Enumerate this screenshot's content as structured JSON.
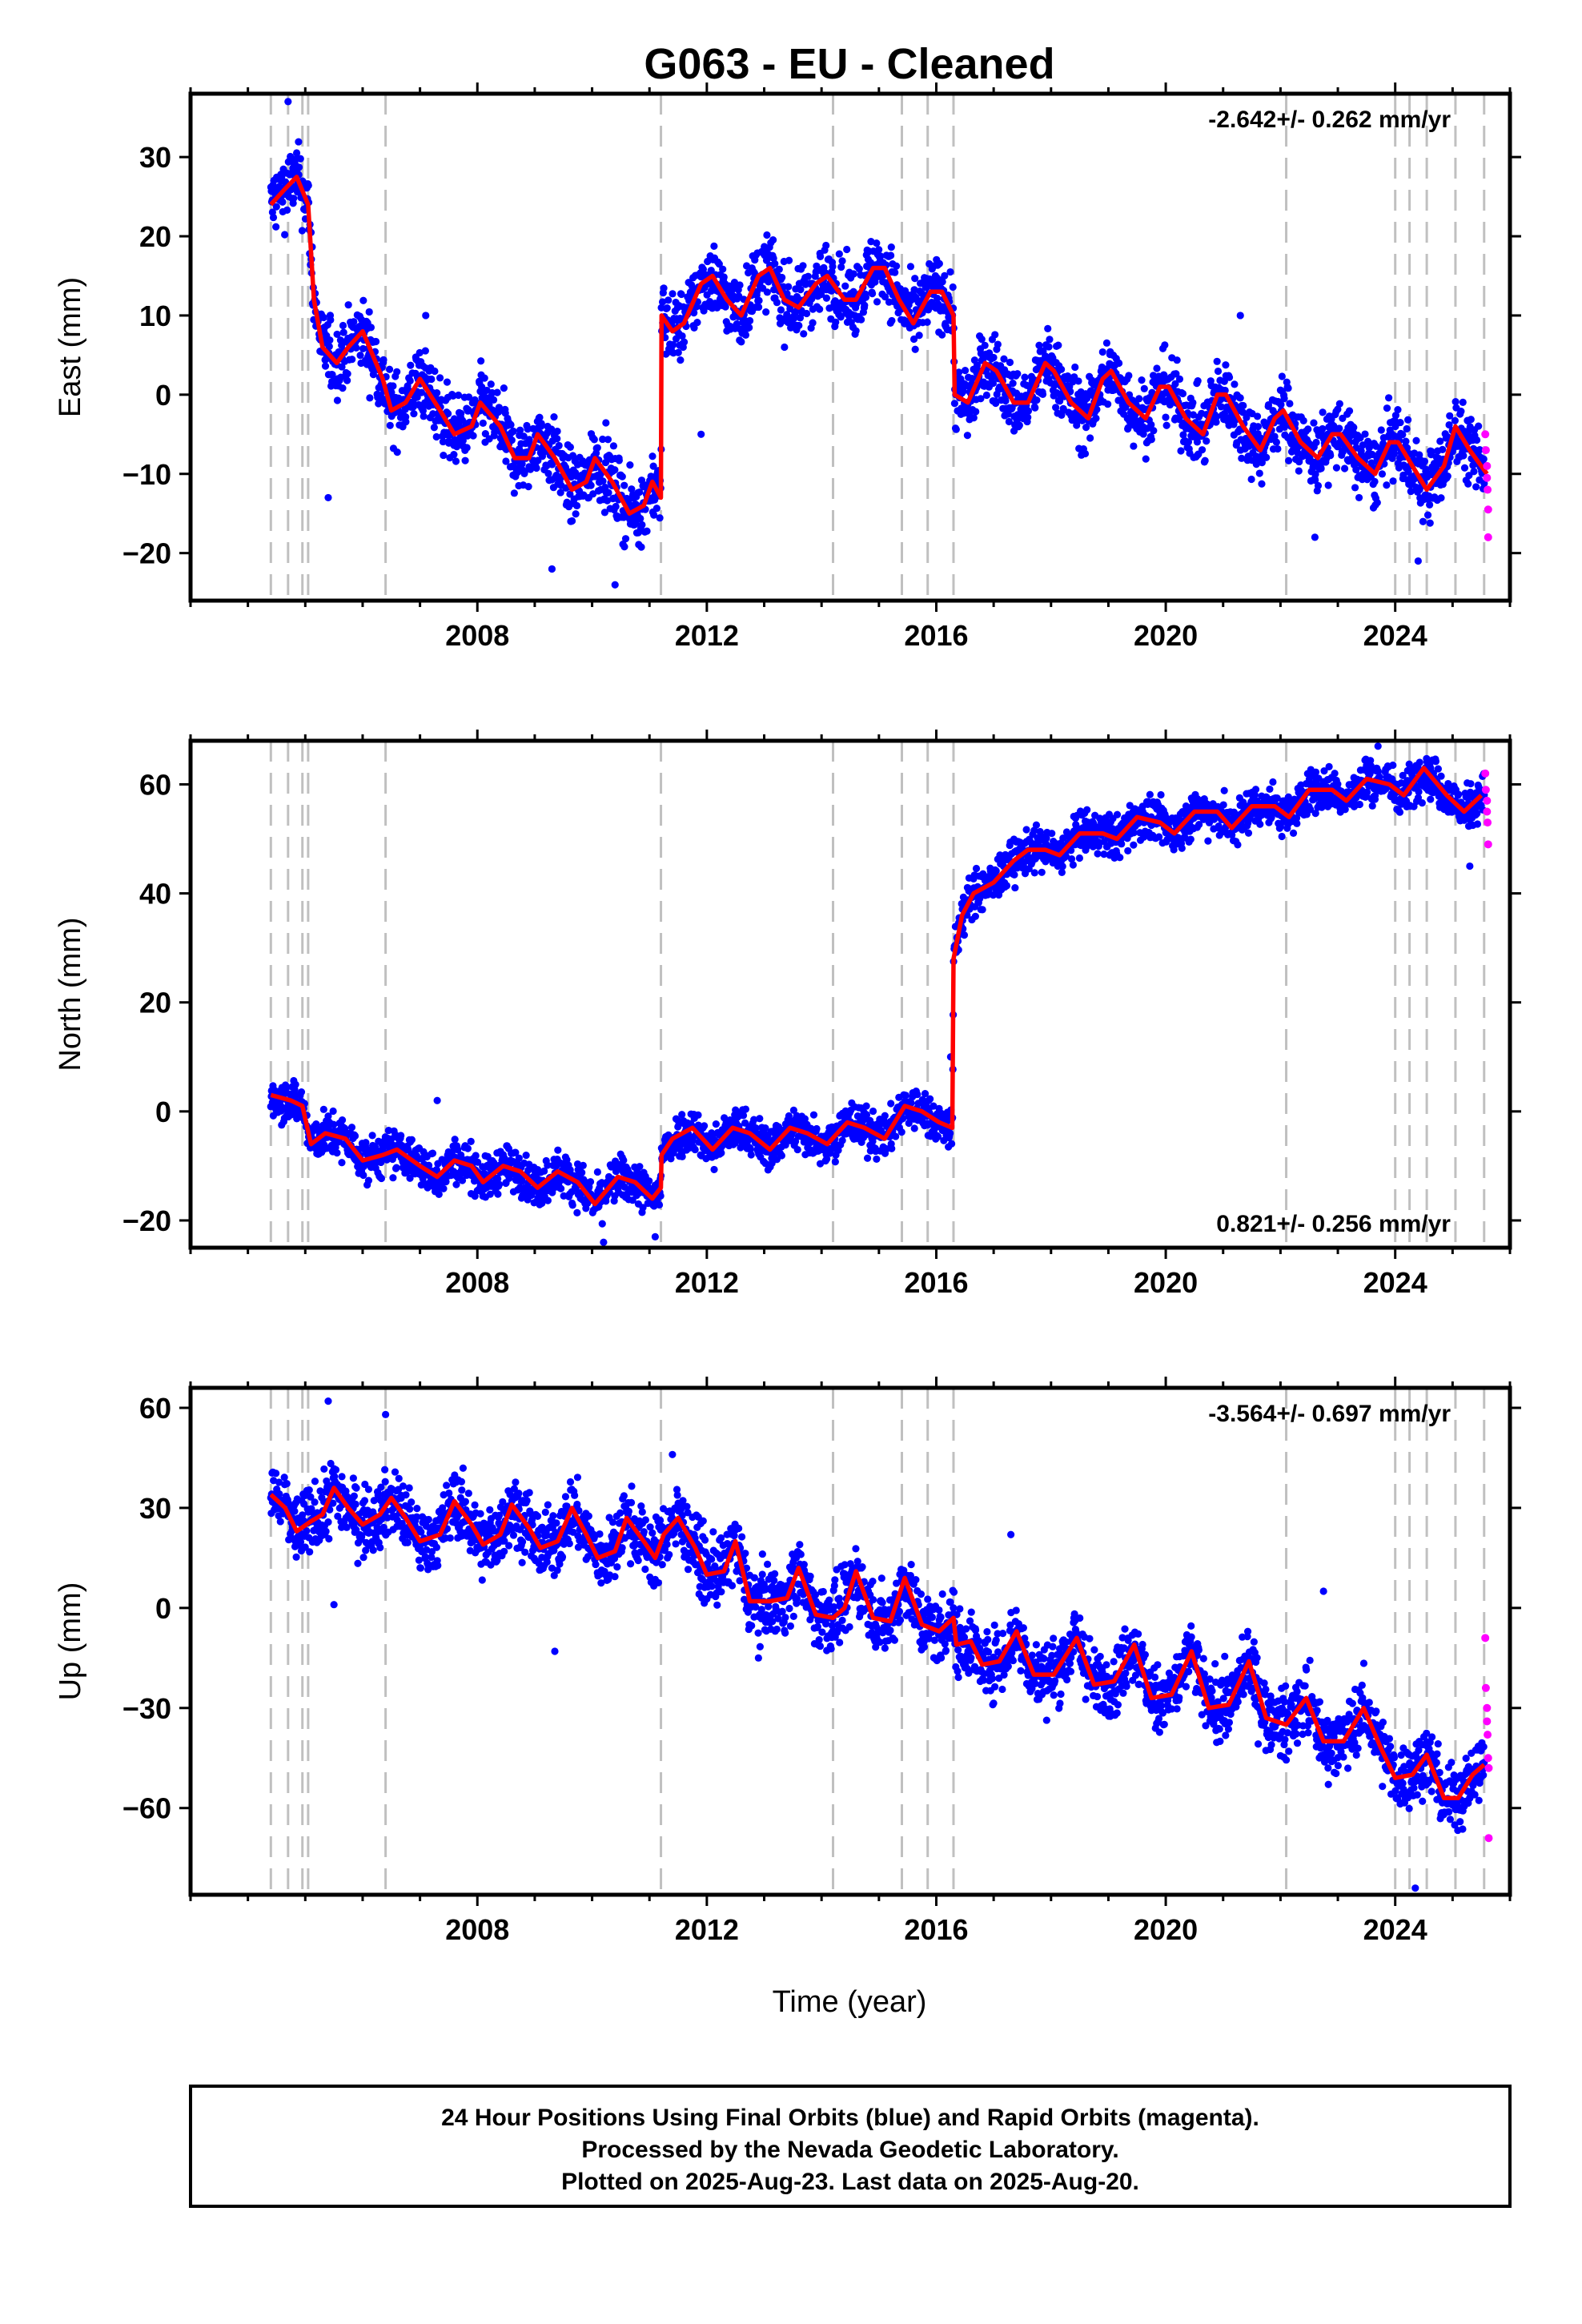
{
  "title": "G063  - EU - Cleaned",
  "xlabel": "Time (year)",
  "footer": {
    "line1": "24 Hour Positions Using Final Orbits (blue) and Rapid Orbits (magenta).",
    "line2": "Processed by the Nevada Geodetic Laboratory.",
    "line3": "Plotted on 2025-Aug-23. Last data on 2025-Aug-20."
  },
  "colors": {
    "final_orbits": "#0000ff",
    "rapid_orbits": "#ff00ff",
    "model": "#ff0000",
    "steps": "#c0c0c0",
    "frame": "#000000"
  },
  "chart_data": [
    {
      "type": "scatter",
      "panel": "east",
      "ylabel": "East (mm)",
      "rate": "-2.642+/- 0.262 mm/yr",
      "rate_position": "top-right",
      "xlim": [
        2003.0,
        2026.0
      ],
      "ylim": [
        -26,
        38
      ],
      "x_ticks": [
        2008,
        2012,
        2016,
        2020,
        2024
      ],
      "y_ticks": [
        -20,
        -10,
        0,
        10,
        20,
        30
      ],
      "step_epochs": [
        2004.4,
        2004.7,
        2004.95,
        2005.05,
        2006.4,
        2011.2,
        2014.2,
        2015.4,
        2015.85,
        2016.3,
        2022.1,
        2024.0,
        2024.25,
        2024.55,
        2025.05,
        2025.55
      ],
      "model_knots": [
        [
          2004.4,
          24
        ],
        [
          2004.65,
          26
        ],
        [
          2004.85,
          27.5
        ],
        [
          2005.05,
          24
        ],
        [
          2005.15,
          12
        ],
        [
          2005.3,
          6
        ],
        [
          2005.55,
          4
        ],
        [
          2005.75,
          6
        ],
        [
          2006.0,
          8
        ],
        [
          2006.35,
          2
        ],
        [
          2006.5,
          -2
        ],
        [
          2006.75,
          -1
        ],
        [
          2007.0,
          2
        ],
        [
          2007.35,
          -2
        ],
        [
          2007.6,
          -5
        ],
        [
          2007.9,
          -4
        ],
        [
          2008.05,
          -1
        ],
        [
          2008.4,
          -4
        ],
        [
          2008.65,
          -8
        ],
        [
          2008.9,
          -8
        ],
        [
          2009.05,
          -5
        ],
        [
          2009.35,
          -8
        ],
        [
          2009.65,
          -12
        ],
        [
          2009.9,
          -11
        ],
        [
          2010.05,
          -8
        ],
        [
          2010.35,
          -11
        ],
        [
          2010.65,
          -15
        ],
        [
          2010.9,
          -14
        ],
        [
          2011.05,
          -11
        ],
        [
          2011.2,
          -13
        ],
        [
          2011.21,
          10
        ],
        [
          2011.4,
          8
        ],
        [
          2011.6,
          9
        ],
        [
          2011.9,
          14
        ],
        [
          2012.1,
          15
        ],
        [
          2012.35,
          12
        ],
        [
          2012.6,
          10
        ],
        [
          2012.9,
          15
        ],
        [
          2013.1,
          16
        ],
        [
          2013.35,
          12
        ],
        [
          2013.6,
          11
        ],
        [
          2013.9,
          14
        ],
        [
          2014.1,
          15
        ],
        [
          2014.2,
          14
        ],
        [
          2014.4,
          12
        ],
        [
          2014.6,
          12
        ],
        [
          2014.9,
          16
        ],
        [
          2015.1,
          16
        ],
        [
          2015.35,
          12
        ],
        [
          2015.6,
          9
        ],
        [
          2015.9,
          13
        ],
        [
          2016.1,
          13
        ],
        [
          2016.3,
          10
        ],
        [
          2016.32,
          0
        ],
        [
          2016.55,
          -1
        ],
        [
          2016.85,
          4
        ],
        [
          2017.05,
          3
        ],
        [
          2017.35,
          -1
        ],
        [
          2017.6,
          -1
        ],
        [
          2017.9,
          4
        ],
        [
          2018.05,
          3
        ],
        [
          2018.35,
          -1
        ],
        [
          2018.65,
          -3
        ],
        [
          2018.9,
          2
        ],
        [
          2019.05,
          3
        ],
        [
          2019.35,
          -1
        ],
        [
          2019.65,
          -3
        ],
        [
          2019.9,
          1
        ],
        [
          2020.05,
          1
        ],
        [
          2020.35,
          -3
        ],
        [
          2020.65,
          -5
        ],
        [
          2020.9,
          0
        ],
        [
          2021.05,
          0
        ],
        [
          2021.35,
          -4
        ],
        [
          2021.65,
          -7
        ],
        [
          2021.9,
          -3
        ],
        [
          2022.05,
          -2
        ],
        [
          2022.35,
          -6
        ],
        [
          2022.65,
          -8
        ],
        [
          2022.9,
          -5
        ],
        [
          2023.05,
          -5
        ],
        [
          2023.35,
          -8
        ],
        [
          2023.65,
          -10
        ],
        [
          2023.9,
          -6
        ],
        [
          2024.05,
          -6
        ],
        [
          2024.3,
          -9
        ],
        [
          2024.55,
          -12
        ],
        [
          2024.85,
          -9
        ],
        [
          2025.05,
          -4
        ],
        [
          2025.3,
          -7
        ],
        [
          2025.6,
          -10
        ]
      ],
      "noise_mm": 2.2,
      "outliers": [
        [
          2004.7,
          37
        ],
        [
          2011.9,
          -5
        ],
        [
          2009.3,
          -22
        ],
        [
          2010.4,
          -24
        ],
        [
          2024.4,
          -21
        ],
        [
          2021.3,
          10
        ],
        [
          2007.1,
          10
        ],
        [
          2022.6,
          -18
        ],
        [
          2005.4,
          -13
        ]
      ],
      "rapid_points": [
        [
          2025.57,
          -5
        ],
        [
          2025.58,
          -7
        ],
        [
          2025.6,
          -9
        ],
        [
          2025.6,
          -10.5
        ],
        [
          2025.61,
          -12
        ],
        [
          2025.62,
          -14.5
        ],
        [
          2025.62,
          -18
        ]
      ]
    },
    {
      "type": "scatter",
      "panel": "north",
      "ylabel": "North (mm)",
      "rate": "0.821+/- 0.256 mm/yr",
      "rate_position": "bottom-right",
      "xlim": [
        2003.0,
        2026.0
      ],
      "ylim": [
        -25,
        68
      ],
      "x_ticks": [
        2008,
        2012,
        2016,
        2020,
        2024
      ],
      "y_ticks": [
        -20,
        0,
        20,
        40,
        60
      ],
      "step_epochs": [
        2004.4,
        2004.7,
        2004.95,
        2005.05,
        2006.4,
        2011.2,
        2014.2,
        2015.4,
        2015.85,
        2016.3,
        2022.1,
        2024.0,
        2024.25,
        2024.55,
        2025.05,
        2025.55
      ],
      "model_knots": [
        [
          2004.4,
          3
        ],
        [
          2004.75,
          2
        ],
        [
          2004.95,
          1
        ],
        [
          2005.1,
          -6
        ],
        [
          2005.35,
          -4
        ],
        [
          2005.7,
          -5
        ],
        [
          2006.0,
          -9
        ],
        [
          2006.35,
          -8
        ],
        [
          2006.6,
          -7
        ],
        [
          2007.0,
          -10
        ],
        [
          2007.3,
          -12
        ],
        [
          2007.6,
          -9
        ],
        [
          2007.9,
          -10
        ],
        [
          2008.1,
          -13
        ],
        [
          2008.45,
          -10
        ],
        [
          2008.75,
          -11
        ],
        [
          2009.05,
          -14
        ],
        [
          2009.4,
          -11
        ],
        [
          2009.75,
          -13
        ],
        [
          2010.05,
          -17
        ],
        [
          2010.45,
          -12
        ],
        [
          2010.75,
          -13
        ],
        [
          2011.05,
          -16
        ],
        [
          2011.2,
          -14
        ],
        [
          2011.21,
          -8
        ],
        [
          2011.4,
          -5
        ],
        [
          2011.75,
          -3
        ],
        [
          2012.1,
          -7
        ],
        [
          2012.45,
          -3
        ],
        [
          2012.75,
          -4
        ],
        [
          2013.1,
          -7
        ],
        [
          2013.45,
          -3
        ],
        [
          2013.75,
          -4
        ],
        [
          2014.1,
          -6
        ],
        [
          2014.45,
          -2
        ],
        [
          2014.75,
          -3
        ],
        [
          2015.1,
          -5
        ],
        [
          2015.45,
          1
        ],
        [
          2015.75,
          0
        ],
        [
          2016.05,
          -2
        ],
        [
          2016.28,
          -3
        ],
        [
          2016.3,
          28
        ],
        [
          2016.45,
          36
        ],
        [
          2016.65,
          40
        ],
        [
          2017.0,
          42
        ],
        [
          2017.35,
          46
        ],
        [
          2017.6,
          48
        ],
        [
          2017.9,
          48
        ],
        [
          2018.15,
          47
        ],
        [
          2018.5,
          51
        ],
        [
          2018.9,
          51
        ],
        [
          2019.15,
          50
        ],
        [
          2019.5,
          54
        ],
        [
          2019.9,
          53
        ],
        [
          2020.15,
          51
        ],
        [
          2020.5,
          55
        ],
        [
          2020.9,
          55
        ],
        [
          2021.15,
          52
        ],
        [
          2021.5,
          56
        ],
        [
          2021.9,
          56
        ],
        [
          2022.15,
          54
        ],
        [
          2022.5,
          59
        ],
        [
          2022.9,
          59
        ],
        [
          2023.15,
          57
        ],
        [
          2023.5,
          61
        ],
        [
          2023.9,
          60
        ],
        [
          2024.15,
          58
        ],
        [
          2024.5,
          63
        ],
        [
          2024.9,
          58
        ],
        [
          2025.2,
          55
        ],
        [
          2025.5,
          58
        ]
      ],
      "noise_mm": 2.0,
      "outliers": [
        [
          2007.3,
          2
        ],
        [
          2011.1,
          -23
        ],
        [
          2010.2,
          -24
        ],
        [
          2016.25,
          10
        ],
        [
          2025.3,
          45
        ],
        [
          2023.7,
          67
        ]
      ],
      "rapid_points": [
        [
          2025.57,
          62
        ],
        [
          2025.58,
          59
        ],
        [
          2025.6,
          57
        ],
        [
          2025.6,
          55
        ],
        [
          2025.61,
          53
        ],
        [
          2025.62,
          49
        ]
      ]
    },
    {
      "type": "scatter",
      "panel": "up",
      "ylabel": "Up (mm)",
      "rate": "-3.564+/- 0.697 mm/yr",
      "rate_position": "top-right",
      "xlim": [
        2003.0,
        2026.0
      ],
      "ylim": [
        -86,
        66
      ],
      "x_ticks": [
        2008,
        2012,
        2016,
        2020,
        2024
      ],
      "y_ticks": [
        -60,
        -30,
        0,
        30,
        60
      ],
      "step_epochs": [
        2004.4,
        2004.7,
        2004.95,
        2005.05,
        2006.4,
        2011.2,
        2014.2,
        2015.4,
        2015.85,
        2016.3,
        2022.1,
        2024.0,
        2024.25,
        2024.55,
        2025.05,
        2025.55
      ],
      "model_knots": [
        [
          2004.4,
          34
        ],
        [
          2004.65,
          30
        ],
        [
          2004.85,
          23
        ],
        [
          2005.1,
          26
        ],
        [
          2005.3,
          28
        ],
        [
          2005.5,
          36
        ],
        [
          2005.75,
          30
        ],
        [
          2006.0,
          25
        ],
        [
          2006.3,
          28
        ],
        [
          2006.5,
          33
        ],
        [
          2006.75,
          27
        ],
        [
          2007.0,
          20
        ],
        [
          2007.35,
          22
        ],
        [
          2007.6,
          32
        ],
        [
          2007.9,
          25
        ],
        [
          2008.1,
          19
        ],
        [
          2008.4,
          22
        ],
        [
          2008.6,
          31
        ],
        [
          2008.9,
          24
        ],
        [
          2009.1,
          18
        ],
        [
          2009.4,
          20
        ],
        [
          2009.65,
          30
        ],
        [
          2009.9,
          22
        ],
        [
          2010.1,
          15
        ],
        [
          2010.4,
          17
        ],
        [
          2010.6,
          27
        ],
        [
          2010.9,
          20
        ],
        [
          2011.1,
          15
        ],
        [
          2011.25,
          22
        ],
        [
          2011.5,
          27
        ],
        [
          2011.8,
          18
        ],
        [
          2012.0,
          10
        ],
        [
          2012.3,
          11
        ],
        [
          2012.5,
          20
        ],
        [
          2012.75,
          2
        ],
        [
          2013.1,
          2
        ],
        [
          2013.4,
          3
        ],
        [
          2013.6,
          12
        ],
        [
          2013.9,
          -2
        ],
        [
          2014.2,
          -3
        ],
        [
          2014.4,
          0
        ],
        [
          2014.6,
          11
        ],
        [
          2014.9,
          -3
        ],
        [
          2015.2,
          -4
        ],
        [
          2015.45,
          9
        ],
        [
          2015.75,
          -5
        ],
        [
          2016.05,
          -7
        ],
        [
          2016.3,
          -3
        ],
        [
          2016.35,
          -11
        ],
        [
          2016.6,
          -10
        ],
        [
          2016.8,
          -17
        ],
        [
          2017.1,
          -16
        ],
        [
          2017.4,
          -7
        ],
        [
          2017.7,
          -20
        ],
        [
          2018.05,
          -20
        ],
        [
          2018.45,
          -9
        ],
        [
          2018.75,
          -23
        ],
        [
          2019.1,
          -22
        ],
        [
          2019.45,
          -11
        ],
        [
          2019.75,
          -27
        ],
        [
          2020.1,
          -26
        ],
        [
          2020.45,
          -13
        ],
        [
          2020.75,
          -30
        ],
        [
          2021.1,
          -29
        ],
        [
          2021.45,
          -16
        ],
        [
          2021.75,
          -33
        ],
        [
          2022.1,
          -35
        ],
        [
          2022.45,
          -27
        ],
        [
          2022.75,
          -40
        ],
        [
          2023.1,
          -40
        ],
        [
          2023.45,
          -30
        ],
        [
          2023.75,
          -42
        ],
        [
          2024.0,
          -51
        ],
        [
          2024.3,
          -50
        ],
        [
          2024.55,
          -44
        ],
        [
          2024.85,
          -57
        ],
        [
          2025.1,
          -57
        ],
        [
          2025.35,
          -50
        ],
        [
          2025.55,
          -47
        ]
      ],
      "noise_mm": 5.0,
      "outliers": [
        [
          2005.4,
          62
        ],
        [
          2006.4,
          58
        ],
        [
          2005.5,
          1
        ],
        [
          2009.35,
          -13
        ],
        [
          2011.4,
          46
        ],
        [
          2017.3,
          22
        ],
        [
          2022.75,
          5
        ],
        [
          2024.35,
          -84
        ],
        [
          2012.9,
          -15
        ],
        [
          2018.2,
          -10
        ]
      ],
      "rapid_points": [
        [
          2025.57,
          -9
        ],
        [
          2025.58,
          -24
        ],
        [
          2025.6,
          -30
        ],
        [
          2025.6,
          -34
        ],
        [
          2025.61,
          -38
        ],
        [
          2025.62,
          -45
        ],
        [
          2025.63,
          -48
        ],
        [
          2025.63,
          -69
        ]
      ]
    }
  ]
}
